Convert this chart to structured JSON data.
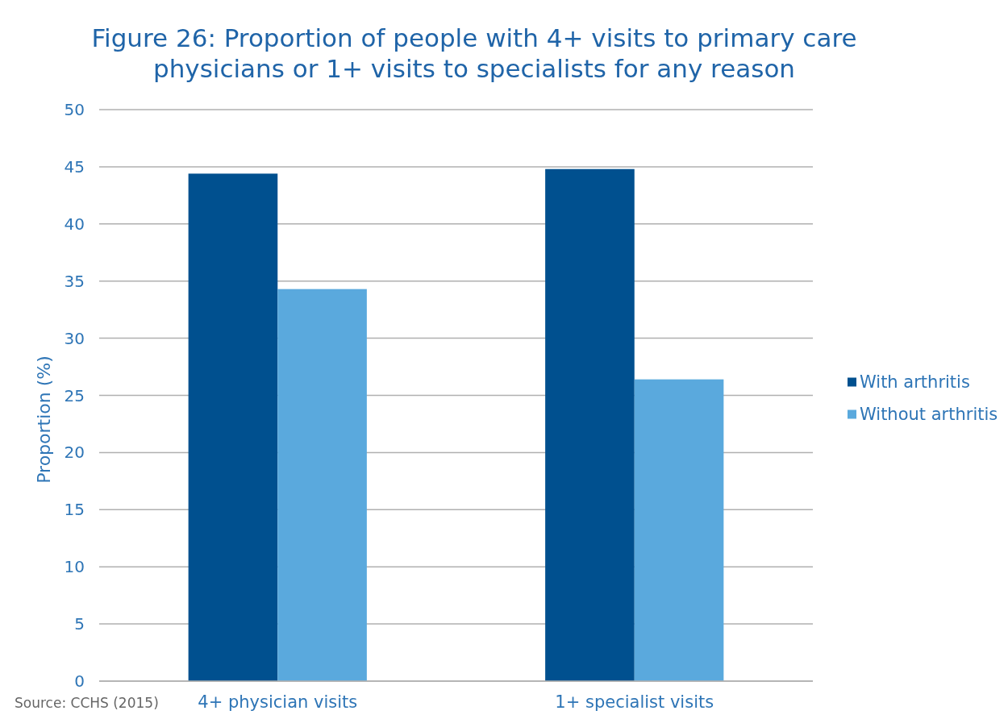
{
  "chart_data": {
    "type": "bar",
    "title": "Figure 26: Proportion of people with 4+ visits to primary care physicians or 1+ visits to specialists for any reason",
    "ylabel": "Proportion (%)",
    "categories": [
      "4+ physician visits",
      "1+ specialist visits"
    ],
    "series": [
      {
        "name": "With arthritis",
        "color": "#00508f",
        "values": [
          44.4,
          44.8
        ]
      },
      {
        "name": "Without arthritis",
        "color": "#5aa9dd",
        "values": [
          34.3,
          26.4
        ]
      }
    ],
    "ylim": [
      0,
      50
    ],
    "yticks": [
      0,
      5,
      10,
      15,
      20,
      25,
      30,
      35,
      40,
      45,
      50
    ],
    "grid": "y",
    "legend": "right",
    "annotations": [
      "Source: CCHS (2015)"
    ]
  }
}
